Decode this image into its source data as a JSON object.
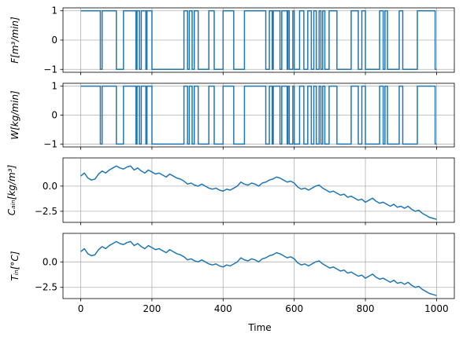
{
  "chart_data": {
    "type": "line",
    "xlabel": "Time",
    "xlim": [
      -50,
      1050
    ],
    "xticks": [
      0,
      200,
      400,
      600,
      800,
      1000
    ],
    "xtick_labels": [
      "0",
      "200",
      "400",
      "600",
      "800",
      "1000"
    ],
    "line_color": "#1f77b4",
    "grid": true,
    "panels": [
      {
        "id": "F",
        "ylabel": "F[m³/min]",
        "ylim": [
          -1.1,
          1.1
        ],
        "yticks": [
          -1,
          0,
          1
        ],
        "ytick_labels": [
          "−1",
          "0",
          "1"
        ],
        "show_xtick_labels": false,
        "kind": "step",
        "series": {
          "x": [
            0,
            55,
            60,
            100,
            120,
            155,
            158,
            165,
            170,
            183,
            186,
            200,
            220,
            290,
            300,
            305,
            313,
            319,
            330,
            360,
            375,
            400,
            430,
            460,
            520,
            530,
            538,
            541,
            560,
            565,
            580,
            582,
            586,
            596,
            600,
            615,
            627,
            638,
            648,
            655,
            662,
            670,
            675,
            680,
            686,
            698,
            720,
            760,
            780,
            790,
            800,
            840,
            850,
            855,
            862,
            895,
            905,
            946,
            996,
            1000
          ],
          "y": [
            1,
            -1,
            1,
            -1,
            1,
            -1,
            1,
            -1,
            1,
            -1,
            1,
            -1,
            -1,
            1,
            -1,
            1,
            -1,
            1,
            -1,
            1,
            -1,
            1,
            -1,
            1,
            -1,
            1,
            -1,
            1,
            -1,
            1,
            -1,
            1,
            -1,
            1,
            -1,
            1,
            -1,
            1,
            -1,
            1,
            -1,
            1,
            -1,
            1,
            -1,
            1,
            -1,
            1,
            -1,
            1,
            -1,
            1,
            -1,
            1,
            -1,
            1,
            -1,
            1,
            -1,
            -1
          ]
        }
      },
      {
        "id": "W",
        "ylabel": "W[kg/min]",
        "ylim": [
          -1.1,
          1.1
        ],
        "yticks": [
          -1,
          0,
          1
        ],
        "ytick_labels": [
          "−1",
          "0",
          "1"
        ],
        "show_xtick_labels": false,
        "kind": "step",
        "series": {
          "x": [
            0,
            55,
            60,
            100,
            120,
            155,
            158,
            165,
            170,
            183,
            186,
            200,
            220,
            290,
            300,
            305,
            313,
            319,
            330,
            360,
            375,
            400,
            430,
            460,
            520,
            530,
            538,
            541,
            560,
            565,
            580,
            582,
            586,
            596,
            600,
            615,
            627,
            638,
            648,
            655,
            662,
            670,
            675,
            680,
            686,
            698,
            720,
            760,
            780,
            790,
            800,
            840,
            850,
            855,
            862,
            895,
            905,
            946,
            996,
            1000
          ],
          "y": [
            1,
            -1,
            1,
            -1,
            1,
            -1,
            1,
            -1,
            1,
            -1,
            1,
            -1,
            -1,
            1,
            -1,
            1,
            -1,
            1,
            -1,
            1,
            -1,
            1,
            -1,
            1,
            -1,
            1,
            -1,
            1,
            -1,
            1,
            -1,
            1,
            -1,
            1,
            -1,
            1,
            -1,
            1,
            -1,
            1,
            -1,
            1,
            -1,
            1,
            -1,
            1,
            -1,
            1,
            -1,
            1,
            -1,
            1,
            -1,
            1,
            -1,
            1,
            -1,
            1,
            -1,
            -1
          ]
        }
      },
      {
        "id": "Cain",
        "ylabel": "Cₐᵢₙ[kg/m³]",
        "ylim": [
          -3.6,
          2.8
        ],
        "yticks": [
          -2.5,
          0.0
        ],
        "ytick_labels": [
          "−2.5",
          "0.0"
        ],
        "show_xtick_labels": false,
        "kind": "line",
        "series": {
          "x": [
            0,
            10,
            20,
            30,
            40,
            50,
            60,
            70,
            80,
            90,
            100,
            110,
            120,
            130,
            140,
            150,
            160,
            170,
            180,
            190,
            200,
            210,
            220,
            230,
            240,
            250,
            260,
            270,
            280,
            290,
            300,
            310,
            320,
            330,
            340,
            350,
            360,
            370,
            380,
            390,
            400,
            410,
            420,
            430,
            440,
            450,
            460,
            470,
            480,
            490,
            500,
            510,
            520,
            530,
            540,
            550,
            560,
            570,
            580,
            590,
            600,
            610,
            620,
            630,
            640,
            650,
            660,
            670,
            680,
            690,
            700,
            710,
            720,
            730,
            740,
            750,
            760,
            770,
            780,
            790,
            800,
            810,
            820,
            830,
            840,
            850,
            860,
            870,
            880,
            890,
            900,
            910,
            920,
            930,
            940,
            950,
            960,
            970,
            980,
            990,
            1000
          ],
          "y": [
            1.0,
            1.3,
            0.8,
            0.6,
            0.7,
            1.2,
            1.5,
            1.3,
            1.6,
            1.8,
            2.0,
            1.8,
            1.7,
            1.9,
            2.0,
            1.6,
            1.8,
            1.5,
            1.3,
            1.6,
            1.4,
            1.2,
            1.3,
            1.1,
            0.9,
            1.2,
            1.0,
            0.8,
            0.7,
            0.5,
            0.2,
            0.3,
            0.1,
            0.0,
            0.2,
            0.0,
            -0.2,
            -0.3,
            -0.2,
            -0.4,
            -0.5,
            -0.3,
            -0.4,
            -0.2,
            0.0,
            0.4,
            0.2,
            0.1,
            0.3,
            0.2,
            0.0,
            0.3,
            0.4,
            0.6,
            0.7,
            0.9,
            0.8,
            0.6,
            0.4,
            0.5,
            0.3,
            -0.1,
            -0.3,
            -0.2,
            -0.4,
            -0.2,
            0.0,
            0.1,
            -0.2,
            -0.4,
            -0.6,
            -0.5,
            -0.7,
            -0.9,
            -0.8,
            -1.1,
            -1.0,
            -1.2,
            -1.4,
            -1.3,
            -1.6,
            -1.4,
            -1.2,
            -1.5,
            -1.7,
            -1.6,
            -1.8,
            -2.0,
            -1.8,
            -2.1,
            -2.0,
            -2.2,
            -2.0,
            -2.3,
            -2.5,
            -2.4,
            -2.7,
            -2.9,
            -3.1,
            -3.2,
            -3.3
          ]
        }
      },
      {
        "id": "Tin",
        "ylabel": "Tᵢₙ[°C]",
        "ylim": [
          -3.6,
          2.8
        ],
        "yticks": [
          -2.5,
          0.0
        ],
        "ytick_labels": [
          "−2.5",
          "0.0"
        ],
        "show_xtick_labels": true,
        "kind": "line",
        "series": {
          "x": [
            0,
            10,
            20,
            30,
            40,
            50,
            60,
            70,
            80,
            90,
            100,
            110,
            120,
            130,
            140,
            150,
            160,
            170,
            180,
            190,
            200,
            210,
            220,
            230,
            240,
            250,
            260,
            270,
            280,
            290,
            300,
            310,
            320,
            330,
            340,
            350,
            360,
            370,
            380,
            390,
            400,
            410,
            420,
            430,
            440,
            450,
            460,
            470,
            480,
            490,
            500,
            510,
            520,
            530,
            540,
            550,
            560,
            570,
            580,
            590,
            600,
            610,
            620,
            630,
            640,
            650,
            660,
            670,
            680,
            690,
            700,
            710,
            720,
            730,
            740,
            750,
            760,
            770,
            780,
            790,
            800,
            810,
            820,
            830,
            840,
            850,
            860,
            870,
            880,
            890,
            900,
            910,
            920,
            930,
            940,
            950,
            960,
            970,
            980,
            990,
            1000
          ],
          "y": [
            1.0,
            1.3,
            0.8,
            0.6,
            0.7,
            1.2,
            1.5,
            1.3,
            1.6,
            1.8,
            2.0,
            1.8,
            1.7,
            1.9,
            2.0,
            1.6,
            1.8,
            1.5,
            1.3,
            1.6,
            1.4,
            1.2,
            1.3,
            1.1,
            0.9,
            1.2,
            1.0,
            0.8,
            0.7,
            0.5,
            0.2,
            0.3,
            0.1,
            0.0,
            0.2,
            0.0,
            -0.2,
            -0.3,
            -0.2,
            -0.4,
            -0.5,
            -0.3,
            -0.4,
            -0.2,
            0.0,
            0.4,
            0.2,
            0.1,
            0.3,
            0.2,
            0.0,
            0.3,
            0.4,
            0.6,
            0.7,
            0.9,
            0.8,
            0.6,
            0.4,
            0.5,
            0.3,
            -0.1,
            -0.3,
            -0.2,
            -0.4,
            -0.2,
            0.0,
            0.1,
            -0.2,
            -0.4,
            -0.6,
            -0.5,
            -0.7,
            -0.9,
            -0.8,
            -1.1,
            -1.0,
            -1.2,
            -1.4,
            -1.3,
            -1.6,
            -1.4,
            -1.2,
            -1.5,
            -1.7,
            -1.6,
            -1.8,
            -2.0,
            -1.8,
            -2.1,
            -2.0,
            -2.2,
            -2.0,
            -2.3,
            -2.5,
            -2.4,
            -2.7,
            -2.9,
            -3.1,
            -3.2,
            -3.3
          ]
        }
      }
    ]
  }
}
